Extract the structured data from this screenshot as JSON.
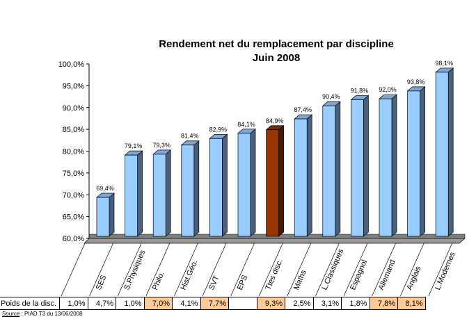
{
  "chart_data": {
    "type": "bar",
    "title": "Rendement net du remplacement par discipline",
    "subtitle": "Juin 2008",
    "categories": [
      "SES",
      "S.Physiques",
      "Philo.",
      "Hist.Géo.",
      "SVT",
      "EPS",
      "Ttes disc.",
      "Maths",
      "L.Classiques",
      "Espagnol",
      "Allemand",
      "Anglais",
      "L.Modernes"
    ],
    "values": [
      69.4,
      79.1,
      79.3,
      81.4,
      82.9,
      84.1,
      84.9,
      87.4,
      90.4,
      91.8,
      92.0,
      93.8,
      98.1
    ],
    "data_labels": [
      "69,4%",
      "79,1%",
      "79,3%",
      "81,4%",
      "82,9%",
      "84,1%",
      "84,9%",
      "87,4%",
      "90,4%",
      "91,8%",
      "92,0%",
      "93,8%",
      "98,1%"
    ],
    "ylim": [
      60,
      100
    ],
    "yticks": [
      "60,0%",
      "65,0%",
      "70,0%",
      "75,0%",
      "80,0%",
      "85,0%",
      "90,0%",
      "95,0%",
      "100,0%"
    ],
    "grid": false,
    "style": "3d-column",
    "colors": {
      "default": "#99ccff",
      "highlight": "#993300",
      "highlight_category": "Ttes disc."
    }
  },
  "table": {
    "row_label": "Poids de la disc.",
    "cells": [
      "1,0%",
      "4,7%",
      "1,0%",
      "7,0%",
      "4,1%",
      "7,7%",
      "",
      "9,3%",
      "2,5%",
      "3,1%",
      "1,8%",
      "7,8%",
      "8,1%"
    ],
    "highlighted": [
      false,
      false,
      false,
      true,
      false,
      true,
      false,
      true,
      false,
      false,
      false,
      true,
      true
    ],
    "highlight_color": "#ffcc99"
  },
  "source": {
    "label": "Source",
    "text": " : PIAD T3 du 13/06/2008"
  }
}
